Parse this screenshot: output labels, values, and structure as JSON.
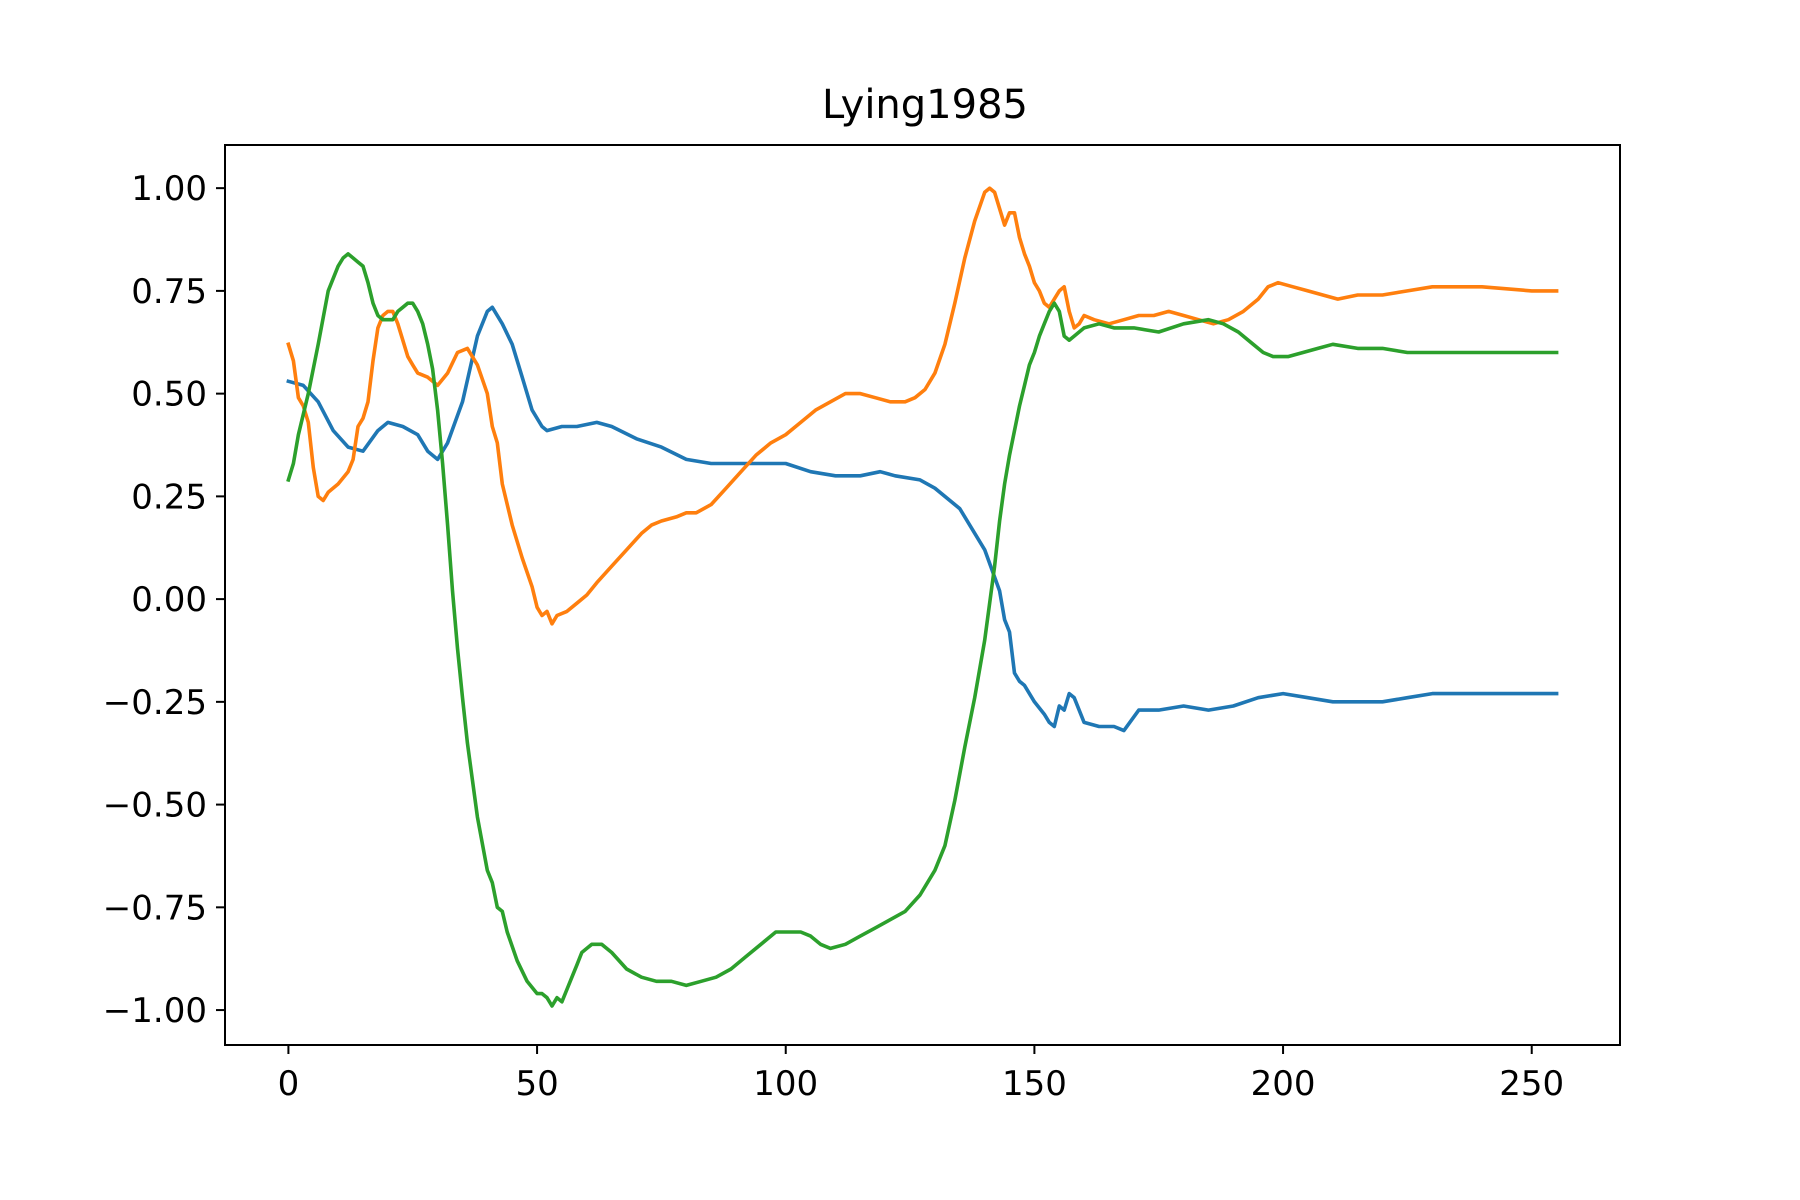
{
  "chart_data": {
    "type": "line",
    "title": "Lying1985",
    "xlabel": "",
    "ylabel": "",
    "xlim": [
      -12.75,
      267.75
    ],
    "ylim": [
      -1.085,
      1.105
    ],
    "grid": false,
    "legend": "none",
    "x_ticks": [
      0,
      50,
      100,
      150,
      200,
      250
    ],
    "x_tick_labels": [
      "0",
      "50",
      "100",
      "150",
      "200",
      "250"
    ],
    "y_ticks": [
      1.0,
      0.75,
      0.5,
      0.25,
      0.0,
      -0.25,
      -0.5,
      -0.75,
      -1.0
    ],
    "y_tick_labels": [
      "1.00",
      "0.75",
      "0.50",
      "0.25",
      "0.00",
      "−0.25",
      "−0.50",
      "−0.75",
      "−1.00"
    ],
    "series": [
      {
        "color": "#1f77b4",
        "points": [
          [
            0,
            0.53
          ],
          [
            3,
            0.52
          ],
          [
            6,
            0.48
          ],
          [
            9,
            0.41
          ],
          [
            12,
            0.37
          ],
          [
            15,
            0.36
          ],
          [
            18,
            0.41
          ],
          [
            20,
            0.43
          ],
          [
            23,
            0.42
          ],
          [
            26,
            0.4
          ],
          [
            28,
            0.36
          ],
          [
            30,
            0.34
          ],
          [
            32,
            0.38
          ],
          [
            35,
            0.48
          ],
          [
            38,
            0.64
          ],
          [
            40,
            0.7
          ],
          [
            41,
            0.71
          ],
          [
            43,
            0.67
          ],
          [
            45,
            0.62
          ],
          [
            47,
            0.54
          ],
          [
            49,
            0.46
          ],
          [
            51,
            0.42
          ],
          [
            52,
            0.41
          ],
          [
            55,
            0.42
          ],
          [
            58,
            0.42
          ],
          [
            62,
            0.43
          ],
          [
            65,
            0.42
          ],
          [
            70,
            0.39
          ],
          [
            75,
            0.37
          ],
          [
            80,
            0.34
          ],
          [
            85,
            0.33
          ],
          [
            90,
            0.33
          ],
          [
            95,
            0.33
          ],
          [
            100,
            0.33
          ],
          [
            105,
            0.31
          ],
          [
            110,
            0.3
          ],
          [
            115,
            0.3
          ],
          [
            119,
            0.31
          ],
          [
            122,
            0.3
          ],
          [
            127,
            0.29
          ],
          [
            130,
            0.27
          ],
          [
            135,
            0.22
          ],
          [
            140,
            0.12
          ],
          [
            143,
            0.02
          ],
          [
            144,
            -0.05
          ],
          [
            145,
            -0.08
          ],
          [
            146,
            -0.18
          ],
          [
            147,
            -0.2
          ],
          [
            148,
            -0.21
          ],
          [
            150,
            -0.25
          ],
          [
            152,
            -0.28
          ],
          [
            153,
            -0.3
          ],
          [
            154,
            -0.31
          ],
          [
            155,
            -0.26
          ],
          [
            156,
            -0.27
          ],
          [
            157,
            -0.23
          ],
          [
            158,
            -0.24
          ],
          [
            160,
            -0.3
          ],
          [
            163,
            -0.31
          ],
          [
            166,
            -0.31
          ],
          [
            168,
            -0.32
          ],
          [
            171,
            -0.27
          ],
          [
            175,
            -0.27
          ],
          [
            180,
            -0.26
          ],
          [
            185,
            -0.27
          ],
          [
            190,
            -0.26
          ],
          [
            195,
            -0.24
          ],
          [
            200,
            -0.23
          ],
          [
            205,
            -0.24
          ],
          [
            210,
            -0.25
          ],
          [
            215,
            -0.25
          ],
          [
            220,
            -0.25
          ],
          [
            225,
            -0.24
          ],
          [
            230,
            -0.23
          ],
          [
            240,
            -0.23
          ],
          [
            250,
            -0.23
          ],
          [
            255,
            -0.23
          ]
        ]
      },
      {
        "color": "#ff7f0e",
        "points": [
          [
            0,
            0.62
          ],
          [
            1,
            0.58
          ],
          [
            2,
            0.49
          ],
          [
            3,
            0.47
          ],
          [
            4,
            0.43
          ],
          [
            5,
            0.32
          ],
          [
            6,
            0.25
          ],
          [
            7,
            0.24
          ],
          [
            8,
            0.26
          ],
          [
            10,
            0.28
          ],
          [
            12,
            0.31
          ],
          [
            13,
            0.34
          ],
          [
            14,
            0.42
          ],
          [
            15,
            0.44
          ],
          [
            16,
            0.48
          ],
          [
            17,
            0.58
          ],
          [
            18,
            0.66
          ],
          [
            19,
            0.69
          ],
          [
            20,
            0.7
          ],
          [
            21,
            0.7
          ],
          [
            22,
            0.67
          ],
          [
            23,
            0.63
          ],
          [
            24,
            0.59
          ],
          [
            25,
            0.57
          ],
          [
            26,
            0.55
          ],
          [
            28,
            0.54
          ],
          [
            30,
            0.52
          ],
          [
            32,
            0.55
          ],
          [
            34,
            0.6
          ],
          [
            36,
            0.61
          ],
          [
            38,
            0.57
          ],
          [
            40,
            0.5
          ],
          [
            41,
            0.42
          ],
          [
            42,
            0.38
          ],
          [
            43,
            0.28
          ],
          [
            45,
            0.18
          ],
          [
            47,
            0.1
          ],
          [
            49,
            0.03
          ],
          [
            50,
            -0.02
          ],
          [
            51,
            -0.04
          ],
          [
            52,
            -0.03
          ],
          [
            53,
            -0.06
          ],
          [
            54,
            -0.04
          ],
          [
            56,
            -0.03
          ],
          [
            58,
            -0.01
          ],
          [
            60,
            0.01
          ],
          [
            62,
            0.04
          ],
          [
            65,
            0.08
          ],
          [
            68,
            0.12
          ],
          [
            71,
            0.16
          ],
          [
            73,
            0.18
          ],
          [
            75,
            0.19
          ],
          [
            78,
            0.2
          ],
          [
            80,
            0.21
          ],
          [
            82,
            0.21
          ],
          [
            85,
            0.23
          ],
          [
            88,
            0.27
          ],
          [
            91,
            0.31
          ],
          [
            94,
            0.35
          ],
          [
            97,
            0.38
          ],
          [
            100,
            0.4
          ],
          [
            103,
            0.43
          ],
          [
            106,
            0.46
          ],
          [
            109,
            0.48
          ],
          [
            112,
            0.5
          ],
          [
            115,
            0.5
          ],
          [
            118,
            0.49
          ],
          [
            121,
            0.48
          ],
          [
            124,
            0.48
          ],
          [
            126,
            0.49
          ],
          [
            128,
            0.51
          ],
          [
            130,
            0.55
          ],
          [
            132,
            0.62
          ],
          [
            134,
            0.72
          ],
          [
            136,
            0.83
          ],
          [
            138,
            0.92
          ],
          [
            140,
            0.99
          ],
          [
            141,
            1.0
          ],
          [
            142,
            0.99
          ],
          [
            143,
            0.95
          ],
          [
            144,
            0.91
          ],
          [
            145,
            0.94
          ],
          [
            146,
            0.94
          ],
          [
            147,
            0.88
          ],
          [
            148,
            0.84
          ],
          [
            149,
            0.81
          ],
          [
            150,
            0.77
          ],
          [
            151,
            0.75
          ],
          [
            152,
            0.72
          ],
          [
            153,
            0.71
          ],
          [
            154,
            0.73
          ],
          [
            155,
            0.75
          ],
          [
            156,
            0.76
          ],
          [
            157,
            0.7
          ],
          [
            158,
            0.66
          ],
          [
            159,
            0.67
          ],
          [
            160,
            0.69
          ],
          [
            162,
            0.68
          ],
          [
            165,
            0.67
          ],
          [
            168,
            0.68
          ],
          [
            171,
            0.69
          ],
          [
            174,
            0.69
          ],
          [
            177,
            0.7
          ],
          [
            180,
            0.69
          ],
          [
            183,
            0.68
          ],
          [
            186,
            0.67
          ],
          [
            189,
            0.68
          ],
          [
            192,
            0.7
          ],
          [
            195,
            0.73
          ],
          [
            197,
            0.76
          ],
          [
            199,
            0.77
          ],
          [
            202,
            0.76
          ],
          [
            205,
            0.75
          ],
          [
            208,
            0.74
          ],
          [
            211,
            0.73
          ],
          [
            215,
            0.74
          ],
          [
            220,
            0.74
          ],
          [
            225,
            0.75
          ],
          [
            230,
            0.76
          ],
          [
            240,
            0.76
          ],
          [
            250,
            0.75
          ],
          [
            255,
            0.75
          ]
        ]
      },
      {
        "color": "#2ca02c",
        "points": [
          [
            0,
            0.29
          ],
          [
            1,
            0.33
          ],
          [
            2,
            0.4
          ],
          [
            4,
            0.5
          ],
          [
            6,
            0.62
          ],
          [
            8,
            0.75
          ],
          [
            10,
            0.81
          ],
          [
            11,
            0.83
          ],
          [
            12,
            0.84
          ],
          [
            13,
            0.83
          ],
          [
            14,
            0.82
          ],
          [
            15,
            0.81
          ],
          [
            16,
            0.77
          ],
          [
            17,
            0.72
          ],
          [
            18,
            0.69
          ],
          [
            19,
            0.68
          ],
          [
            20,
            0.68
          ],
          [
            21,
            0.68
          ],
          [
            22,
            0.7
          ],
          [
            23,
            0.71
          ],
          [
            24,
            0.72
          ],
          [
            25,
            0.72
          ],
          [
            26,
            0.7
          ],
          [
            27,
            0.67
          ],
          [
            28,
            0.62
          ],
          [
            29,
            0.56
          ],
          [
            30,
            0.46
          ],
          [
            31,
            0.33
          ],
          [
            32,
            0.18
          ],
          [
            33,
            0.02
          ],
          [
            34,
            -0.12
          ],
          [
            35,
            -0.24
          ],
          [
            36,
            -0.35
          ],
          [
            37,
            -0.44
          ],
          [
            38,
            -0.53
          ],
          [
            40,
            -0.66
          ],
          [
            41,
            -0.69
          ],
          [
            42,
            -0.75
          ],
          [
            43,
            -0.76
          ],
          [
            44,
            -0.81
          ],
          [
            46,
            -0.88
          ],
          [
            48,
            -0.93
          ],
          [
            50,
            -0.96
          ],
          [
            51,
            -0.96
          ],
          [
            52,
            -0.97
          ],
          [
            53,
            -0.99
          ],
          [
            54,
            -0.97
          ],
          [
            55,
            -0.98
          ],
          [
            56,
            -0.95
          ],
          [
            57,
            -0.92
          ],
          [
            58,
            -0.89
          ],
          [
            59,
            -0.86
          ],
          [
            60,
            -0.85
          ],
          [
            61,
            -0.84
          ],
          [
            63,
            -0.84
          ],
          [
            65,
            -0.86
          ],
          [
            68,
            -0.9
          ],
          [
            71,
            -0.92
          ],
          [
            74,
            -0.93
          ],
          [
            77,
            -0.93
          ],
          [
            80,
            -0.94
          ],
          [
            83,
            -0.93
          ],
          [
            86,
            -0.92
          ],
          [
            89,
            -0.9
          ],
          [
            92,
            -0.87
          ],
          [
            95,
            -0.84
          ],
          [
            98,
            -0.81
          ],
          [
            100,
            -0.81
          ],
          [
            103,
            -0.81
          ],
          [
            105,
            -0.82
          ],
          [
            107,
            -0.84
          ],
          [
            109,
            -0.85
          ],
          [
            112,
            -0.84
          ],
          [
            115,
            -0.82
          ],
          [
            118,
            -0.8
          ],
          [
            121,
            -0.78
          ],
          [
            124,
            -0.76
          ],
          [
            127,
            -0.72
          ],
          [
            130,
            -0.66
          ],
          [
            132,
            -0.6
          ],
          [
            134,
            -0.49
          ],
          [
            136,
            -0.36
          ],
          [
            138,
            -0.24
          ],
          [
            140,
            -0.1
          ],
          [
            142,
            0.08
          ],
          [
            143,
            0.19
          ],
          [
            144,
            0.28
          ],
          [
            145,
            0.35
          ],
          [
            146,
            0.41
          ],
          [
            147,
            0.47
          ],
          [
            148,
            0.52
          ],
          [
            149,
            0.57
          ],
          [
            150,
            0.6
          ],
          [
            151,
            0.64
          ],
          [
            152,
            0.67
          ],
          [
            153,
            0.7
          ],
          [
            154,
            0.72
          ],
          [
            155,
            0.7
          ],
          [
            156,
            0.64
          ],
          [
            157,
            0.63
          ],
          [
            158,
            0.64
          ],
          [
            160,
            0.66
          ],
          [
            163,
            0.67
          ],
          [
            166,
            0.66
          ],
          [
            170,
            0.66
          ],
          [
            175,
            0.65
          ],
          [
            180,
            0.67
          ],
          [
            185,
            0.68
          ],
          [
            188,
            0.67
          ],
          [
            191,
            0.65
          ],
          [
            194,
            0.62
          ],
          [
            196,
            0.6
          ],
          [
            198,
            0.59
          ],
          [
            201,
            0.59
          ],
          [
            204,
            0.6
          ],
          [
            207,
            0.61
          ],
          [
            210,
            0.62
          ],
          [
            215,
            0.61
          ],
          [
            220,
            0.61
          ],
          [
            225,
            0.6
          ],
          [
            230,
            0.6
          ],
          [
            240,
            0.6
          ],
          [
            250,
            0.6
          ],
          [
            255,
            0.6
          ]
        ]
      }
    ]
  }
}
